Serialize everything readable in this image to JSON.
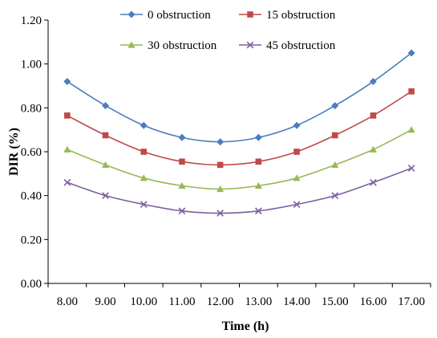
{
  "chart_data": {
    "type": "line",
    "xlabel": "Time (h)",
    "ylabel": "DIR (%)",
    "categories": [
      "8.00",
      "9.00",
      "10.00",
      "11.00",
      "12.00",
      "13.00",
      "14.00",
      "15.00",
      "16.00",
      "17.00"
    ],
    "ylim": [
      0,
      1.2
    ],
    "yticks": [
      "0.00",
      "0.20",
      "0.40",
      "0.60",
      "0.80",
      "1.00",
      "1.20"
    ],
    "grid": false,
    "legend_position": "top",
    "series": [
      {
        "name": "0 obstruction",
        "marker": "diamond",
        "color": "#4a7ebb",
        "values": [
          0.92,
          0.81,
          0.72,
          0.665,
          0.645,
          0.665,
          0.72,
          0.81,
          0.92,
          1.05
        ]
      },
      {
        "name": "15 obstruction",
        "marker": "square",
        "color": "#be4b48",
        "values": [
          0.765,
          0.675,
          0.6,
          0.555,
          0.54,
          0.555,
          0.6,
          0.675,
          0.765,
          0.875
        ]
      },
      {
        "name": "30 obstruction",
        "marker": "triangle",
        "color": "#98b954",
        "values": [
          0.61,
          0.54,
          0.48,
          0.445,
          0.43,
          0.445,
          0.48,
          0.54,
          0.61,
          0.7
        ]
      },
      {
        "name": "45 obstruction",
        "marker": "x",
        "color": "#7d60a0",
        "values": [
          0.46,
          0.4,
          0.36,
          0.33,
          0.32,
          0.33,
          0.36,
          0.4,
          0.46,
          0.525
        ]
      }
    ]
  }
}
